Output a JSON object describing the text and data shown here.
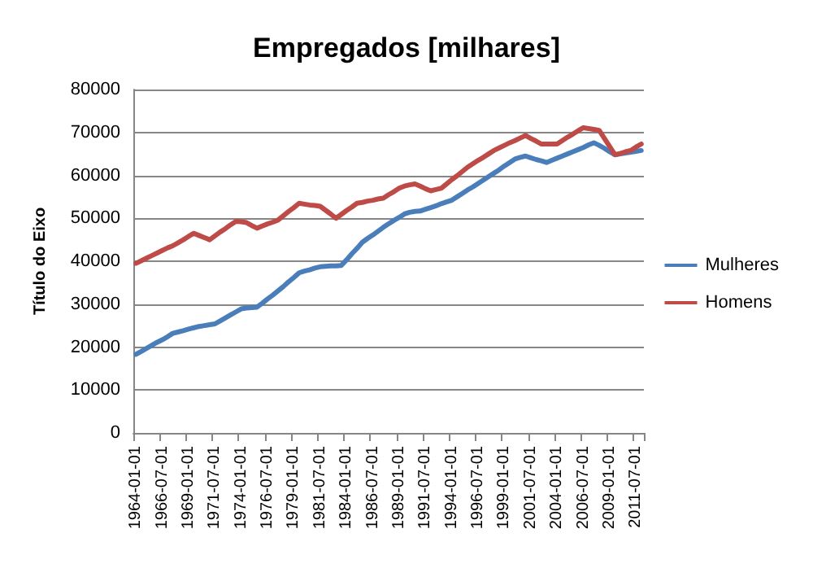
{
  "chart_data": {
    "type": "line",
    "title": "Empregados [milhares]",
    "ylabel": "Título do Eixo",
    "categories": [
      "1964-01-01",
      null,
      null,
      null,
      null,
      "1966-07-01",
      null,
      null,
      null,
      null,
      "1969-01-01",
      null,
      null,
      null,
      null,
      "1971-07-01",
      null,
      null,
      null,
      null,
      "1974-01-01",
      null,
      null,
      null,
      null,
      "1976-07-01",
      null,
      null,
      null,
      null,
      "1979-01-01",
      null,
      null,
      null,
      null,
      "1981-07-01",
      null,
      null,
      null,
      null,
      "1984-01-01",
      null,
      null,
      null,
      null,
      "1986-07-01",
      null,
      null,
      null,
      null,
      "1989-01-01",
      null,
      null,
      null,
      null,
      "1991-07-01",
      null,
      null,
      null,
      null,
      "1994-01-01",
      null,
      null,
      null,
      null,
      "1996-07-01",
      null,
      null,
      null,
      null,
      "1999-01-01",
      null,
      null,
      null,
      null,
      "2001-07-01",
      null,
      null,
      null,
      null,
      "2004-01-01",
      null,
      null,
      null,
      null,
      "2006-07-01",
      null,
      null,
      null,
      null,
      "2009-01-01",
      null,
      null,
      null,
      null,
      "2011-07-01",
      null
    ],
    "series": [
      {
        "name": "Mulheres",
        "color": "#4a7ebb",
        "values": [
          18300,
          19000,
          19700,
          20400,
          21100,
          21700,
          22400,
          23200,
          23500,
          23800,
          24200,
          24500,
          24800,
          25000,
          25200,
          25400,
          26100,
          26800,
          27500,
          28200,
          28900,
          29100,
          29200,
          29300,
          30200,
          31200,
          32100,
          33100,
          34100,
          35200,
          36200,
          37300,
          37700,
          38000,
          38400,
          38700,
          38800,
          38900,
          38900,
          39000,
          40300,
          41700,
          43000,
          44400,
          45300,
          46100,
          47000,
          47900,
          48700,
          49500,
          50200,
          51000,
          51400,
          51600,
          51700,
          52100,
          52500,
          52900,
          53400,
          53800,
          54200,
          55000,
          55800,
          56600,
          57300,
          58100,
          58900,
          59700,
          60500,
          61300,
          62200,
          63000,
          63800,
          64200,
          64500,
          64100,
          63700,
          63400,
          63000,
          63500,
          64000,
          64500,
          65000,
          65500,
          66000,
          66500,
          67100,
          67600,
          67000,
          66300,
          65500,
          64800,
          65000,
          65200,
          65400,
          65600,
          65800
        ]
      },
      {
        "name": "Homens",
        "color": "#be4b48",
        "values": [
          39500,
          40100,
          40700,
          41300,
          41900,
          42500,
          43100,
          43600,
          44300,
          45000,
          45800,
          46500,
          46000,
          45500,
          45000,
          45900,
          46800,
          47600,
          48500,
          49300,
          49200,
          49000,
          48300,
          47700,
          48200,
          48700,
          49100,
          49600,
          50600,
          51600,
          52500,
          53500,
          53300,
          53100,
          53000,
          52800,
          51900,
          51000,
          50000,
          50900,
          51800,
          52600,
          53500,
          53700,
          54000,
          54200,
          54500,
          54700,
          55500,
          56200,
          57000,
          57500,
          57800,
          58000,
          57500,
          56900,
          56400,
          56700,
          57000,
          58000,
          59000,
          59900,
          60900,
          61900,
          62700,
          63500,
          64200,
          65000,
          65800,
          66400,
          67000,
          67600,
          68100,
          68700,
          69300,
          68600,
          68000,
          67300,
          67300,
          67300,
          67300,
          68100,
          68900,
          69600,
          70400,
          71100,
          70900,
          70700,
          70500,
          68600,
          66700,
          64800,
          65100,
          65500,
          65800,
          66600,
          67300
        ]
      }
    ],
    "ylim": [
      0,
      80000
    ],
    "yticks": [
      0,
      10000,
      20000,
      30000,
      40000,
      50000,
      60000,
      70000,
      80000
    ],
    "grid": "y",
    "legend": "right",
    "marker": "none",
    "line_style": "solid"
  }
}
